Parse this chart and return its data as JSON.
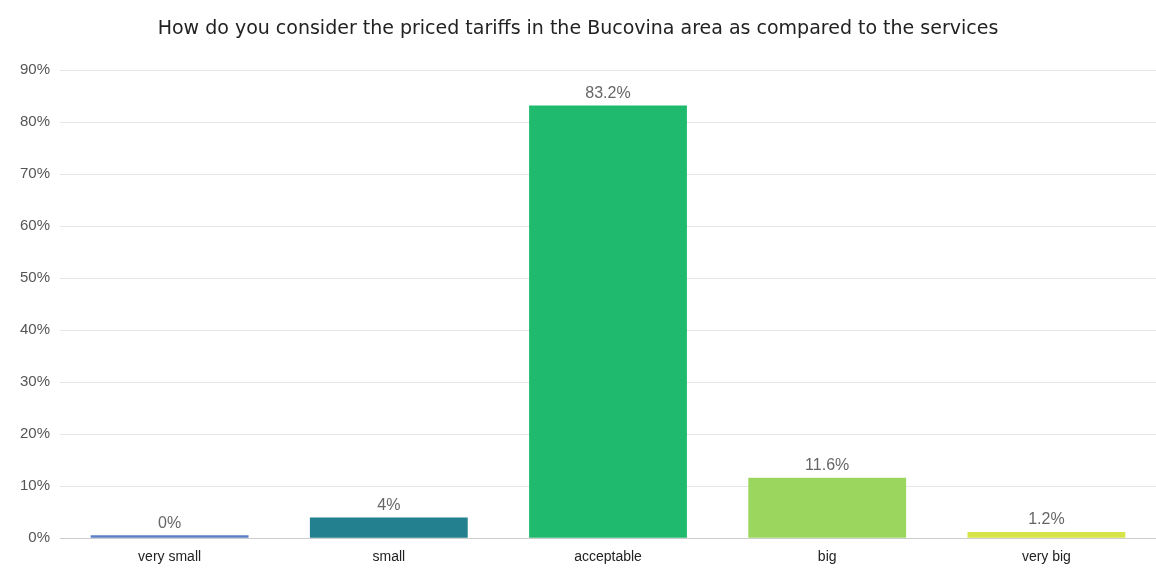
{
  "chart_data": {
    "type": "bar",
    "title": "How do you consider the priced tariffs in the Bucovina area as compared to the services",
    "categories": [
      "very small",
      "small",
      "acceptable",
      "big",
      "very big"
    ],
    "values": [
      0,
      4,
      83.2,
      11.6,
      1.2
    ],
    "colors": [
      "#5b7fc4",
      "#23808f",
      "#1fba6e",
      "#9bd65f",
      "#d6e447"
    ],
    "value_labels": [
      "0%",
      "4%",
      "83.2%",
      "11.6%",
      "1.2%"
    ],
    "ylim": [
      0,
      90
    ],
    "yticks": [
      {
        "value": 0,
        "label": "0%"
      },
      {
        "value": 10,
        "label": "10%"
      },
      {
        "value": 20,
        "label": "20%"
      },
      {
        "value": 30,
        "label": "30%"
      },
      {
        "value": 40,
        "label": "40%"
      },
      {
        "value": 50,
        "label": "50%"
      },
      {
        "value": 60,
        "label": "60%"
      },
      {
        "value": 70,
        "label": "70%"
      },
      {
        "value": 80,
        "label": "80%"
      },
      {
        "value": 90,
        "label": "90%"
      }
    ],
    "grid": "y",
    "legend": false
  }
}
